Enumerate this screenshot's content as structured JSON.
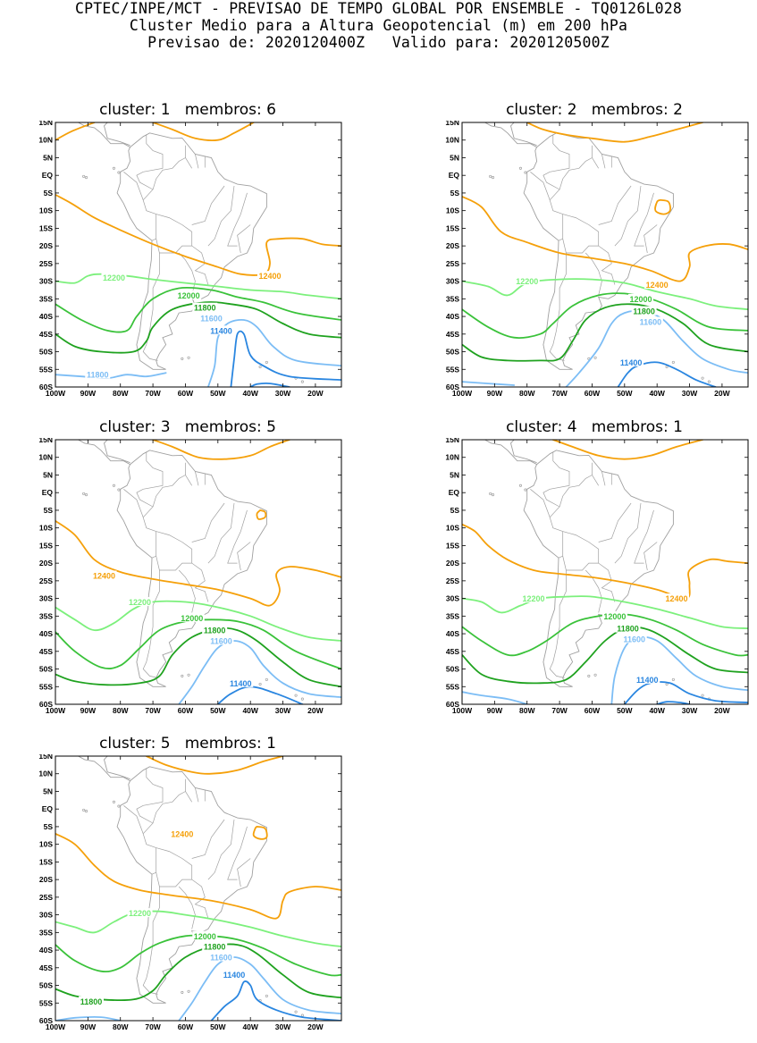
{
  "header": {
    "line1": "CPTEC/INPE/MCT - PREVISAO DE TEMPO GLOBAL POR ENSEMBLE - TQ0126L028",
    "line2": "Cluster Medio para a Altura Geopotencial (m) em 200 hPa",
    "line3": "Previsao de: 2020120400Z   Valido para: 2020120500Z"
  },
  "axes": {
    "lat_ticks": [
      "15N",
      "10N",
      "5N",
      "EQ",
      "5S",
      "10S",
      "15S",
      "20S",
      "25S",
      "30S",
      "35S",
      "40S",
      "45S",
      "50S",
      "55S",
      "60S"
    ],
    "lon_ticks": [
      "100W",
      "90W",
      "80W",
      "70W",
      "60W",
      "50W",
      "40W",
      "30W",
      "20W"
    ]
  },
  "colors": {
    "c12400": "#f5a00a",
    "c12200": "#7cf07c",
    "c12000": "#3ac23a",
    "c11800": "#1fa21f",
    "c11600": "#7cbdf5",
    "c11400": "#2a86e0",
    "land": "#a0a0a0"
  },
  "panels": [
    {
      "title": "cluster: 1   membros: 6",
      "labels": [
        "12400",
        "12200",
        "12000",
        "11800",
        "11600",
        "11400",
        "11800"
      ]
    },
    {
      "title": "cluster: 2   membros: 2",
      "labels": [
        "12400",
        "12200",
        "12000",
        "11800",
        "11600",
        "11400"
      ]
    },
    {
      "title": "cluster: 3   membros: 5",
      "labels": [
        "12400",
        "12200",
        "12000",
        "11800",
        "11600",
        "11400"
      ]
    },
    {
      "title": "cluster: 4   membros: 1",
      "labels": [
        "12400",
        "12200",
        "12000",
        "11800",
        "11600",
        "11400"
      ]
    },
    {
      "title": "cluster: 5   membros: 1",
      "labels": [
        "12400",
        "12200",
        "12000",
        "11800",
        "11600",
        "11400",
        "11800"
      ]
    }
  ]
}
